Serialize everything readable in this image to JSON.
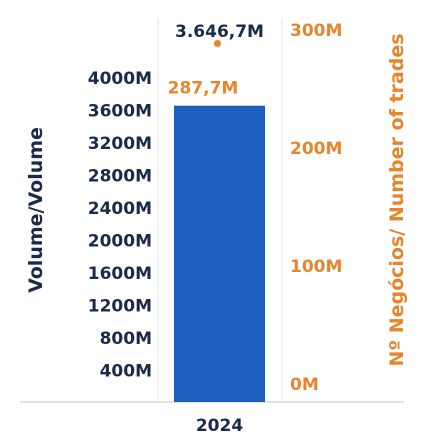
{
  "chart_data": {
    "type": "bar",
    "categories": [
      "2024"
    ],
    "series": [
      {
        "values": [
          3646.7
        ],
        "axis": "left",
        "color": "#1f5fbf",
        "value_label": "3.646,7M"
      },
      {
        "values": [
          287.7
        ],
        "axis": "right",
        "color": "#e8852a",
        "display": "marker",
        "value_label": "287,7M"
      }
    ],
    "ylabel": "Volume/Volume",
    "ylabel_right": "Nº Negócios/ Number of trades",
    "ylim": [
      0,
      4000
    ],
    "ylim_right": [
      0,
      300
    ],
    "yticks": [
      {
        "value": 400,
        "label": "400M"
      },
      {
        "value": 800,
        "label": "800M"
      },
      {
        "value": 1200,
        "label": "1200M"
      },
      {
        "value": 1600,
        "label": "1600M"
      },
      {
        "value": 2000,
        "label": "2000M"
      },
      {
        "value": 2400,
        "label": "2400M"
      },
      {
        "value": 2800,
        "label": "2800M"
      },
      {
        "value": 3200,
        "label": "3200M"
      },
      {
        "value": 3600,
        "label": "3600M"
      },
      {
        "value": 4000,
        "label": "4000M"
      }
    ],
    "yticks_right": [
      {
        "value": 0,
        "label": "0M"
      },
      {
        "value": 100,
        "label": "100M"
      },
      {
        "value": 200,
        "label": "200M"
      },
      {
        "value": 300,
        "label": "300M"
      }
    ],
    "colors": {
      "left_axis_text": "#1a2a4a",
      "right_axis_text": "#e8852a",
      "grid": "#e3e3e3"
    },
    "grid": true
  }
}
